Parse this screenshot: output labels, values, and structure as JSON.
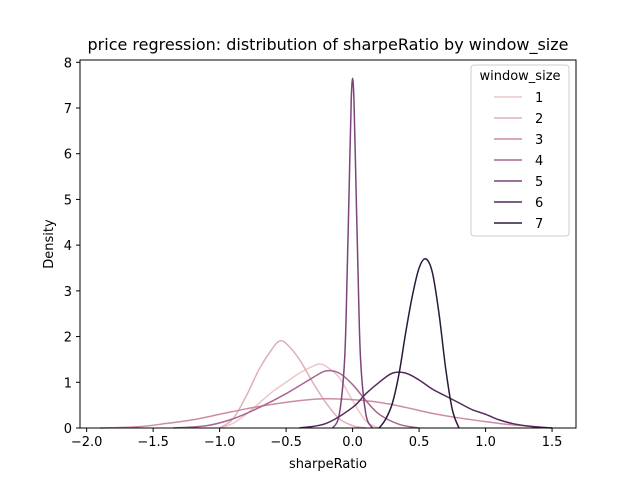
{
  "chart_data": {
    "type": "line",
    "title": "price regression: distribution of sharpeRatio by window_size",
    "xlabel": "sharpeRatio",
    "ylabel": "Density",
    "xlim": [
      -2.05,
      1.68
    ],
    "ylim": [
      0,
      8.05
    ],
    "xticks": [
      -2.0,
      -1.5,
      -1.0,
      -0.5,
      0.0,
      0.5,
      1.0,
      1.5
    ],
    "xtick_labels": [
      "−2.0",
      "−1.5",
      "−1.0",
      "−0.5",
      "0.0",
      "0.5",
      "1.0",
      "1.5"
    ],
    "yticks": [
      0,
      1,
      2,
      3,
      4,
      5,
      6,
      7,
      8
    ],
    "ytick_labels": [
      "0",
      "1",
      "2",
      "3",
      "4",
      "5",
      "6",
      "7",
      "8"
    ],
    "legend": {
      "title": "window_size",
      "position": "upper right"
    },
    "series": [
      {
        "name": "1",
        "color": "#ebc7c8",
        "x": [
          -1.0,
          -0.9,
          -0.8,
          -0.7,
          -0.6,
          -0.5,
          -0.4,
          -0.3,
          -0.25,
          -0.2,
          -0.1,
          0.0,
          0.1,
          0.2
        ],
        "y": [
          0.0,
          0.1,
          0.3,
          0.55,
          0.8,
          1.0,
          1.2,
          1.35,
          1.4,
          1.35,
          1.1,
          0.6,
          0.15,
          0.0
        ]
      },
      {
        "name": "2",
        "color": "#dfafba",
        "x": [
          -1.0,
          -0.9,
          -0.8,
          -0.7,
          -0.6,
          -0.55,
          -0.5,
          -0.4,
          -0.3,
          -0.2,
          -0.1,
          0.0,
          0.05,
          0.1
        ],
        "y": [
          0.0,
          0.2,
          0.7,
          1.3,
          1.75,
          1.9,
          1.85,
          1.5,
          1.0,
          0.55,
          0.2,
          0.05,
          0.02,
          0.0
        ]
      },
      {
        "name": "3",
        "color": "#cc8ca4",
        "x": [
          -1.9,
          -1.6,
          -1.4,
          -1.2,
          -1.0,
          -0.8,
          -0.6,
          -0.4,
          -0.2,
          0.0,
          0.2,
          0.4,
          0.6,
          0.8,
          1.0,
          1.2,
          1.5
        ],
        "y": [
          0.0,
          0.03,
          0.1,
          0.18,
          0.3,
          0.42,
          0.52,
          0.6,
          0.64,
          0.62,
          0.56,
          0.45,
          0.32,
          0.22,
          0.14,
          0.07,
          0.0
        ]
      },
      {
        "name": "4",
        "color": "#a9668f",
        "x": [
          -1.35,
          -1.1,
          -0.9,
          -0.7,
          -0.5,
          -0.3,
          -0.2,
          -0.1,
          0.0,
          0.1,
          0.2,
          0.35,
          0.5
        ],
        "y": [
          0.0,
          0.05,
          0.2,
          0.45,
          0.75,
          1.1,
          1.25,
          1.2,
          0.95,
          0.6,
          0.3,
          0.08,
          0.0
        ]
      },
      {
        "name": "5",
        "color": "#7d4479",
        "x": [
          -0.15,
          -0.1,
          -0.06,
          -0.04,
          -0.02,
          -0.01,
          0.0,
          0.01,
          0.02,
          0.04,
          0.06,
          0.1,
          0.15
        ],
        "y": [
          0.0,
          0.3,
          1.5,
          3.5,
          6.0,
          7.2,
          7.65,
          7.2,
          6.0,
          3.5,
          1.5,
          0.3,
          0.0
        ]
      },
      {
        "name": "6",
        "color": "#542a5c",
        "x": [
          -0.4,
          -0.2,
          0.0,
          0.1,
          0.2,
          0.3,
          0.4,
          0.5,
          0.6,
          0.7,
          0.8,
          0.9,
          1.0,
          1.1,
          1.2,
          1.3,
          1.4,
          1.5
        ],
        "y": [
          0.0,
          0.1,
          0.45,
          0.75,
          1.0,
          1.2,
          1.2,
          1.05,
          0.85,
          0.7,
          0.55,
          0.4,
          0.3,
          0.18,
          0.1,
          0.05,
          0.02,
          0.0
        ]
      },
      {
        "name": "7",
        "color": "#2b1a3a",
        "x": [
          0.2,
          0.25,
          0.3,
          0.35,
          0.4,
          0.45,
          0.5,
          0.55,
          0.6,
          0.65,
          0.7,
          0.75,
          0.8
        ],
        "y": [
          0.0,
          0.2,
          0.55,
          1.2,
          2.1,
          2.9,
          3.5,
          3.7,
          3.4,
          2.5,
          1.3,
          0.4,
          0.0
        ]
      }
    ]
  }
}
